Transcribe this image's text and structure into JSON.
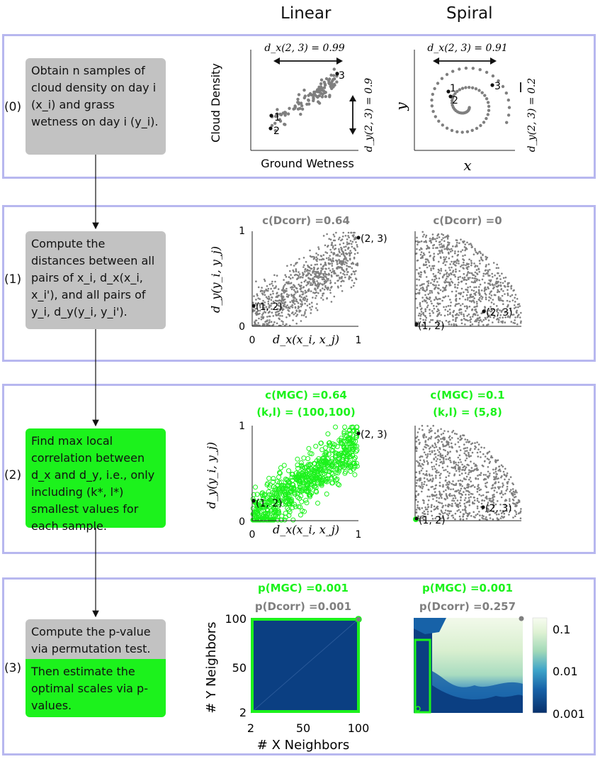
{
  "columns": {
    "linear": "Linear",
    "spiral": "Spiral"
  },
  "steps": [
    {
      "label": "(0)",
      "text": "Obtain n samples of cloud density on day i (x_i) and grass wetness on day i (y_i)."
    },
    {
      "label": "(1)",
      "text": "Compute the distances between all pairs of x_i, d_x(x_i, x_i'), and all pairs of y_i, d_y(y_i, y_i')."
    },
    {
      "label": "(2)",
      "text": "Find max local correlation between d_x and d_y, i.e., only including (k*, l*) smallest values for each sample."
    },
    {
      "label": "(3)",
      "text_top": "Compute the p-value via permutation test.",
      "text_bottom": "Then estimate the optimal scales via p-values."
    }
  ],
  "row0": {
    "linear": {
      "ylabel": "Cloud Density",
      "xlabel": "Ground Wetness",
      "dx": "d_x(2, 3) = 0.99",
      "dy": "d_y(2, 3) = 0.9",
      "points": [
        "1",
        "2",
        "3"
      ]
    },
    "spiral": {
      "ylabel": "y",
      "xlabel": "x",
      "dx": "d_x(2, 3) = 0.91",
      "dy": "d_y(2, 3) = 0.2",
      "points": [
        "1",
        "2",
        "3"
      ]
    }
  },
  "row1": {
    "linear": {
      "title": "c(Dcorr) =0.64",
      "ylabel": "d_y(y_i, y_j)",
      "xlabel": "d_x(x_i, x_j)",
      "ticks": [
        "0",
        "1",
        "0",
        "1"
      ],
      "p12": "(1, 2)",
      "p23": "(2, 3)"
    },
    "spiral": {
      "title": "c(Dcorr) =0",
      "p12": "(1, 2)",
      "p23": "(2, 3)"
    }
  },
  "row2": {
    "linear": {
      "title1": "c(MGC) =0.64",
      "title2": "(k,l) = (100,100)",
      "ylabel": "d_y(y_i, y_j)",
      "xlabel": "d_x(x_i, x_j)",
      "ticks": [
        "0",
        "1",
        "0",
        "1"
      ],
      "p12": "(1, 2)",
      "p23": "(2, 3)"
    },
    "spiral": {
      "title1": "c(MGC) =0.1",
      "title2": "(k,l) = (5,8)",
      "p12": "(1, 2)",
      "p23": "(2, 3)"
    }
  },
  "row3": {
    "linear": {
      "p_mgc": "p(MGC) =0.001",
      "p_dcorr": "p(Dcorr) =0.001",
      "ylabel": "# Y Neighbors",
      "xlabel": "# X Neighbors",
      "yticks": [
        "100",
        "50",
        "2"
      ],
      "xticks": [
        "2",
        "50",
        "100"
      ]
    },
    "spiral": {
      "p_mgc": "p(MGC) =0.001",
      "p_dcorr": "p(Dcorr) =0.257",
      "colorbar": [
        "0.1",
        "0.01",
        "0.001"
      ]
    }
  },
  "colors": {
    "green": "#1cf21c",
    "gray": "#7f7f7f",
    "navy": "#0b3f82",
    "panel_border": "#b7b7ef"
  }
}
